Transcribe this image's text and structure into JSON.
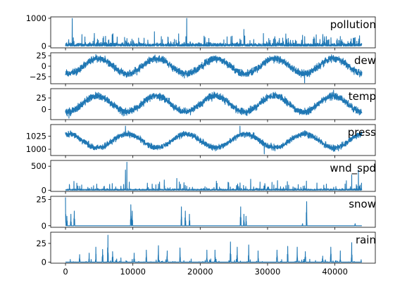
{
  "figure": {
    "background": "#ffffff",
    "series_color": "#1f77b4",
    "x_ticks": [
      0,
      10000,
      20000,
      30000,
      40000
    ],
    "x_tick_labels": [
      "0",
      "10000",
      "20000",
      "30000",
      "40000"
    ]
  },
  "chart_data": [
    {
      "type": "line",
      "title": "pollution",
      "xlim": [
        -2200,
        46000
      ],
      "ylim": [
        -60,
        1050
      ],
      "y_ticks": [
        0,
        1000
      ],
      "y_tick_labels": [
        "0",
        "1000"
      ],
      "kind": "spiky",
      "n_points": 44000,
      "base": 90,
      "noise": 70,
      "spike_rate": 0.018,
      "spike_max": 450,
      "extremes": [
        [
          1000,
          994
        ],
        [
          18000,
          1000
        ],
        [
          26500,
          600
        ],
        [
          13200,
          520
        ]
      ]
    },
    {
      "type": "line",
      "title": "dew",
      "xlim": [
        -2200,
        46000
      ],
      "ylim": [
        -42,
        32
      ],
      "y_ticks": [
        25,
        0,
        -25
      ],
      "y_tick_labels": [
        "25",
        "0",
        "−25"
      ],
      "kind": "seasonal",
      "n_points": 44000,
      "mean": 0,
      "amplitude": 18,
      "noise": 8,
      "phase_peak": 4800,
      "extremes": [
        [
          35500,
          -40
        ],
        [
          4500,
          28
        ]
      ]
    },
    {
      "type": "line",
      "title": "temp",
      "xlim": [
        -2200,
        46000
      ],
      "ylim": [
        -22,
        45
      ],
      "y_ticks": [
        25,
        0
      ],
      "y_tick_labels": [
        "25",
        "0"
      ],
      "kind": "seasonal",
      "n_points": 44000,
      "mean": 12,
      "amplitude": 17,
      "noise": 7,
      "phase_peak": 4700,
      "extremes": [
        [
          39800,
          42
        ],
        [
          500,
          -19
        ]
      ]
    },
    {
      "type": "line",
      "title": "press",
      "xlim": [
        -2200,
        46000
      ],
      "ylim": [
        988,
        1047
      ],
      "y_ticks": [
        1025,
        1000
      ],
      "y_tick_labels": [
        "1025",
        "1000"
      ],
      "kind": "seasonal",
      "n_points": 44000,
      "mean": 1016,
      "amplitude": 13,
      "noise": 5,
      "phase_peak": 400,
      "extremes": [
        [
          8900,
          1044
        ],
        [
          25900,
          1044
        ],
        [
          29500,
          991
        ]
      ]
    },
    {
      "type": "line",
      "title": "wnd_spd",
      "xlim": [
        -2200,
        46000
      ],
      "ylim": [
        -25,
        620
      ],
      "y_ticks": [
        500,
        0
      ],
      "y_tick_labels": [
        "500",
        "0"
      ],
      "kind": "spiky",
      "n_points": 44000,
      "base": 20,
      "noise": 25,
      "spike_rate": 0.012,
      "spike_max": 270,
      "extremes": [
        [
          9100,
          585
        ],
        [
          8900,
          420
        ],
        [
          43500,
          420
        ],
        [
          42500,
          320
        ]
      ]
    },
    {
      "type": "line",
      "title": "snow",
      "xlim": [
        -2200,
        46000
      ],
      "ylim": [
        -1.5,
        28
      ],
      "y_ticks": [
        25,
        0
      ],
      "y_tick_labels": [
        "25",
        "0"
      ],
      "kind": "bursts",
      "n_points": 44000,
      "bursts": [
        [
          0,
          27
        ],
        [
          200,
          9
        ],
        [
          800,
          11
        ],
        [
          1300,
          14
        ],
        [
          9700,
          20
        ],
        [
          9900,
          14
        ],
        [
          17200,
          18
        ],
        [
          17800,
          14
        ],
        [
          18400,
          11
        ],
        [
          26000,
          18
        ],
        [
          26500,
          11
        ],
        [
          26800,
          9
        ],
        [
          35800,
          23
        ],
        [
          35200,
          2
        ],
        [
          43000,
          2
        ]
      ]
    },
    {
      "type": "line",
      "title": "rain",
      "xlim": [
        -2200,
        46000
      ],
      "ylim": [
        -1.5,
        40
      ],
      "y_ticks": [
        25,
        0
      ],
      "y_tick_labels": [
        "25",
        "0"
      ],
      "kind": "rainy",
      "n_points": 44000,
      "bursts": [
        [
          2100,
          10
        ],
        [
          3500,
          12
        ],
        [
          4500,
          20
        ],
        [
          5500,
          17
        ],
        [
          6300,
          36
        ],
        [
          7000,
          14
        ],
        [
          10200,
          12
        ],
        [
          12000,
          16
        ],
        [
          13800,
          22
        ],
        [
          15100,
          15
        ],
        [
          17000,
          19
        ],
        [
          21000,
          16
        ],
        [
          22200,
          16
        ],
        [
          24500,
          27
        ],
        [
          25500,
          20
        ],
        [
          27200,
          23
        ],
        [
          28600,
          15
        ],
        [
          31400,
          16
        ],
        [
          33000,
          21
        ],
        [
          34400,
          20
        ],
        [
          35600,
          14
        ],
        [
          38200,
          8
        ],
        [
          39400,
          20
        ],
        [
          40800,
          15
        ],
        [
          42500,
          26
        ]
      ]
    }
  ]
}
